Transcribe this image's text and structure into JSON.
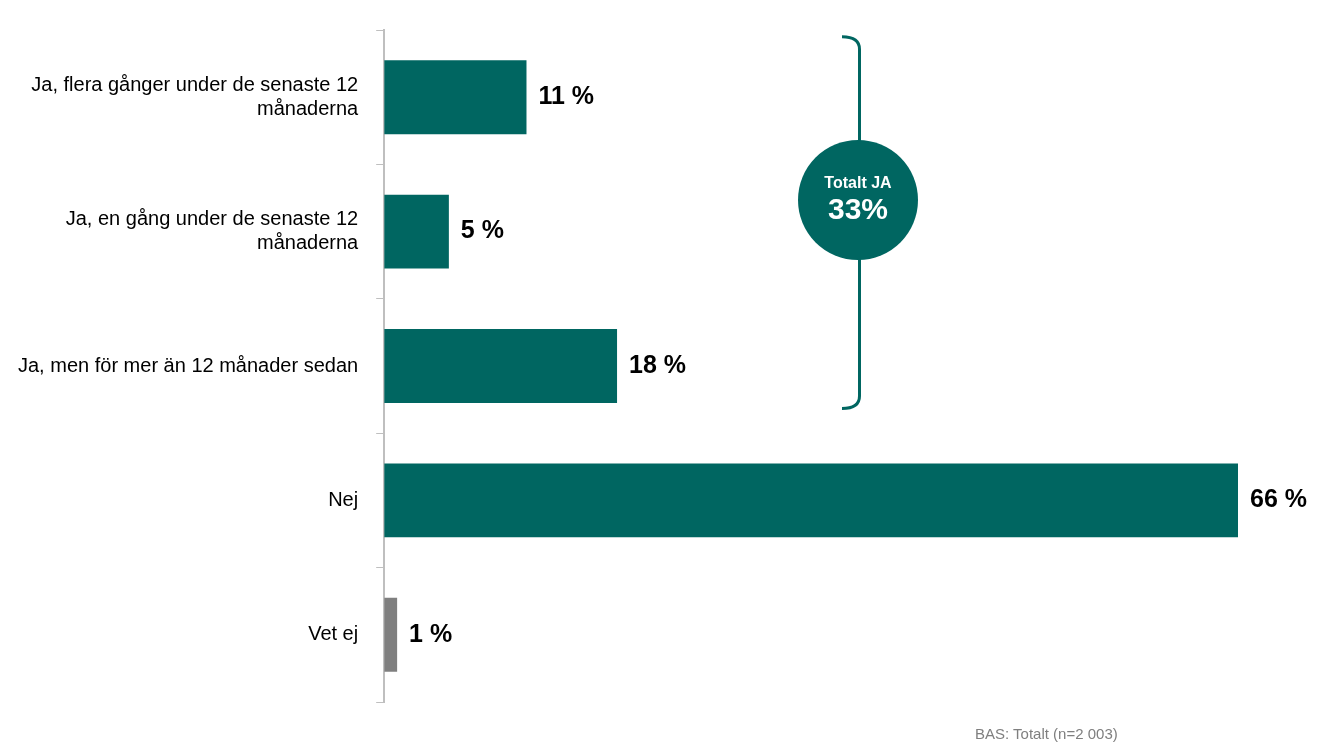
{
  "chart_data": {
    "type": "bar",
    "orientation": "horizontal",
    "categories": [
      "Ja, flera gånger under de senaste 12 månaderna",
      "Ja, en gång under de senaste 12 månaderna",
      "Ja, men för mer än 12 månader sedan",
      "Nej",
      "Vet ej"
    ],
    "values": [
      11,
      5,
      18,
      66,
      1
    ],
    "colors": [
      "#006661",
      "#006661",
      "#006661",
      "#006661",
      "#7f7f7f"
    ],
    "value_labels": [
      "11 %",
      "5 %",
      "18 %",
      "66 %",
      "1 %"
    ],
    "annotations": [
      "Totalt JA",
      "33%",
      "BAS: Totalt (n=2 003)"
    ]
  }
}
